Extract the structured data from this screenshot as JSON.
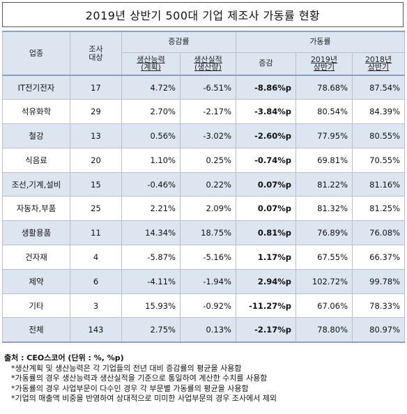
{
  "title": "2019년 상반기 500대 기업 제조사 가동률 현황",
  "headers": {
    "industry": "업종",
    "count": "조사\n대상",
    "change_group": "증감률",
    "utilization_group": "가동률",
    "capacity": "생산능력\n(계획)",
    "output": "생산실적\n(생산량)",
    "delta": "증감",
    "y2019": "2019년\n상반기",
    "y2018": "2018년\n상반기"
  },
  "rows": [
    {
      "industry": "IT전기전자",
      "count": "17",
      "capacity": "4.72%",
      "output": "-6.51%",
      "delta": "-8.86%p",
      "y2019": "78.68%",
      "y2018": "87.54%"
    },
    {
      "industry": "석유화학",
      "count": "29",
      "capacity": "2.70%",
      "output": "-2.17%",
      "delta": "-3.84%p",
      "y2019": "80.54%",
      "y2018": "84.39%"
    },
    {
      "industry": "철강",
      "count": "13",
      "capacity": "0.56%",
      "output": "-3.02%",
      "delta": "-2.60%p",
      "y2019": "77.95%",
      "y2018": "80.55%"
    },
    {
      "industry": "식음료",
      "count": "20",
      "capacity": "1.10%",
      "output": "0.25%",
      "delta": "-0.74%p",
      "y2019": "69.81%",
      "y2018": "70.55%"
    },
    {
      "industry": "조선,기계,설비",
      "count": "15",
      "capacity": "-0.46%",
      "output": "0.22%",
      "delta": "0.07%p",
      "y2019": "81.22%",
      "y2018": "81.16%"
    },
    {
      "industry": "자동차,부품",
      "count": "25",
      "capacity": "2.21%",
      "output": "2.09%",
      "delta": "0.07%p",
      "y2019": "81.32%",
      "y2018": "81.25%"
    },
    {
      "industry": "생활용품",
      "count": "11",
      "capacity": "14.34%",
      "output": "18.75%",
      "delta": "0.81%p",
      "y2019": "76.89%",
      "y2018": "76.08%"
    },
    {
      "industry": "건자재",
      "count": "4",
      "capacity": "-5.87%",
      "output": "-5.16%",
      "delta": "1.17%p",
      "y2019": "67.55%",
      "y2018": "66.37%"
    },
    {
      "industry": "제약",
      "count": "6",
      "capacity": "-4.11%",
      "output": "-1.94%",
      "delta": "2.94%p",
      "y2019": "102.72%",
      "y2018": "99.78%"
    },
    {
      "industry": "기타",
      "count": "3",
      "capacity": "15.93%",
      "output": "-0.92%",
      "delta": "-11.27%p",
      "y2019": "67.06%",
      "y2018": "78.33%"
    },
    {
      "industry": "전체",
      "count": "143",
      "capacity": "2.75%",
      "output": "0.13%",
      "delta": "-2.17%p",
      "y2019": "78.80%",
      "y2018": "80.97%"
    }
  ],
  "source": "출처 : CEO스코어 (단위 : %, %p)",
  "notes": [
    "*생산계획 및 생산능력은 각 기업들의 전년 대비 증감률의 평균을 사용함",
    "*가동률의 경우 생산능력과 생산실적을 기준으로 통일하여 계산한 수치를 사용함",
    "*가동률의 경우 사업부문이 다수인 경우 각 부문별 가동률의 평균을 사용함",
    "*기업의 매출액 비중을 반영하여 상대적으로 미미한 사업부문의 경우 조사에서 제외"
  ]
}
